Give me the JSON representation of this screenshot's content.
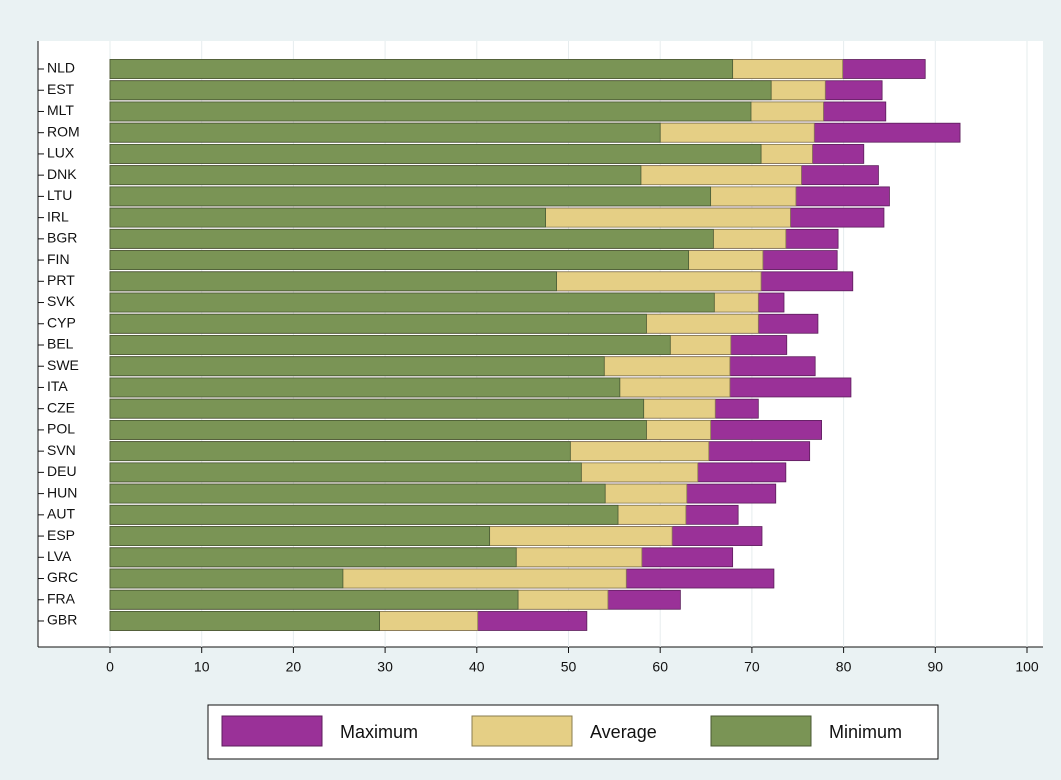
{
  "chart_data": {
    "type": "bar",
    "orientation": "horizontal",
    "overlap": true,
    "categories": [
      "NLD",
      "EST",
      "MLT",
      "ROM",
      "LUX",
      "DNK",
      "LTU",
      "IRL",
      "BGR",
      "FIN",
      "PRT",
      "SVK",
      "CYP",
      "BEL",
      "SWE",
      "ITA",
      "CZE",
      "POL",
      "SVN",
      "DEU",
      "HUN",
      "AUT",
      "ESP",
      "LVA",
      "GRC",
      "FRA",
      "GBR"
    ],
    "series": [
      {
        "name": "Maximum",
        "color": "#9a3198",
        "values": [
          88.9,
          84.2,
          84.6,
          92.7,
          82.2,
          83.8,
          85.0,
          84.4,
          79.4,
          79.3,
          81.0,
          73.5,
          77.2,
          73.8,
          76.9,
          80.8,
          70.7,
          77.6,
          76.3,
          73.7,
          72.6,
          68.5,
          71.1,
          67.9,
          72.4,
          62.2,
          52.0
        ]
      },
      {
        "name": "Average",
        "color": "#e5cf85",
        "values": [
          79.9,
          78.0,
          77.8,
          76.8,
          76.6,
          75.4,
          74.8,
          74.2,
          73.7,
          71.2,
          71.0,
          70.7,
          70.7,
          67.7,
          67.6,
          67.6,
          66.0,
          65.5,
          65.3,
          64.1,
          62.9,
          62.8,
          61.3,
          58.0,
          56.3,
          54.3,
          40.1
        ]
      },
      {
        "name": "Minimum",
        "color": "#7a9455",
        "values": [
          67.9,
          72.1,
          69.9,
          60.0,
          71.0,
          57.9,
          65.5,
          47.5,
          65.8,
          63.1,
          48.7,
          65.9,
          58.5,
          61.1,
          53.9,
          55.6,
          58.2,
          58.5,
          50.2,
          51.4,
          54.0,
          55.4,
          41.4,
          44.3,
          25.4,
          44.5,
          29.4
        ]
      }
    ],
    "xlim": [
      0,
      100
    ],
    "xticks": [
      0,
      10,
      20,
      30,
      40,
      50,
      60,
      70,
      80,
      90,
      100
    ],
    "grid": true
  }
}
